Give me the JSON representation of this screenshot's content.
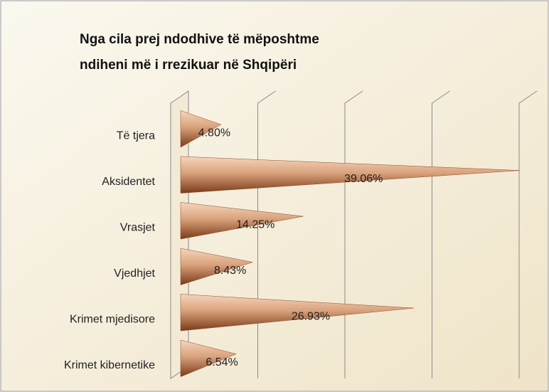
{
  "chart_data": {
    "type": "cone-bar",
    "title": [
      "Nga cila prej ndodhive të mëposhtme",
      "ndiheni më i rrezikuar në Shqipëri"
    ],
    "categories": [
      "Të tjera",
      "Aksidentet",
      "Vrasjet",
      "Vjedhjet",
      "Krimet mjedisore",
      "Krimet kibernetike"
    ],
    "values": [
      4.8,
      39.06,
      14.25,
      8.43,
      26.93,
      6.54
    ],
    "value_labels": [
      "4.80%",
      "39.06%",
      "14.25%",
      "8.43%",
      "26.93%",
      "6.54%"
    ],
    "color": "#a0522d",
    "xlim": [
      0,
      40
    ],
    "xticks": [
      0,
      10,
      20,
      30,
      40
    ],
    "grid": true
  }
}
